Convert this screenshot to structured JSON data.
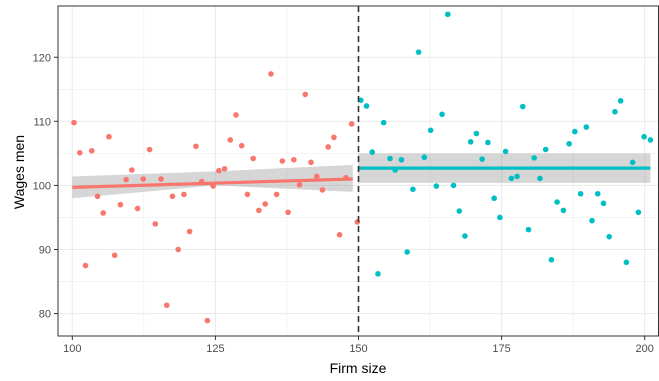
{
  "chart_data": {
    "type": "scatter",
    "title": "",
    "xlabel": "Firm size",
    "ylabel": "Wages men",
    "xlim": [
      97.5,
      202.5
    ],
    "ylim": [
      76.5,
      128
    ],
    "xticks": [
      100,
      125,
      150,
      175,
      200
    ],
    "yticks": [
      80,
      90,
      100,
      110,
      120
    ],
    "grid": true,
    "legend": "none",
    "cutoff": 150,
    "background": "#ffffff",
    "grid_color": "#ebebeb",
    "border_color": "#333333",
    "series": [
      {
        "color": "#F8766D",
        "points": [
          [
            100.3,
            109.8
          ],
          [
            101.3,
            105.1
          ],
          [
            102.3,
            87.5
          ],
          [
            103.4,
            105.4
          ],
          [
            104.4,
            98.3
          ],
          [
            105.4,
            95.7
          ],
          [
            106.4,
            107.6
          ],
          [
            107.4,
            89.1
          ],
          [
            108.4,
            97.0
          ],
          [
            109.4,
            100.9
          ],
          [
            110.4,
            102.4
          ],
          [
            111.4,
            96.4
          ],
          [
            112.4,
            101.0
          ],
          [
            113.5,
            105.6
          ],
          [
            114.5,
            94.0
          ],
          [
            115.5,
            101.0
          ],
          [
            116.5,
            81.3
          ],
          [
            117.5,
            98.3
          ],
          [
            118.5,
            90.0
          ],
          [
            119.5,
            98.6
          ],
          [
            120.5,
            92.8
          ],
          [
            121.6,
            106.1
          ],
          [
            122.6,
            100.6
          ],
          [
            123.6,
            78.9
          ],
          [
            124.6,
            99.9
          ],
          [
            125.6,
            102.3
          ],
          [
            126.6,
            102.6
          ],
          [
            127.6,
            107.1
          ],
          [
            128.6,
            111.0
          ],
          [
            129.6,
            106.2
          ],
          [
            130.6,
            98.6
          ],
          [
            131.6,
            104.2
          ],
          [
            132.6,
            96.1
          ],
          [
            133.7,
            97.1
          ],
          [
            134.7,
            117.4
          ],
          [
            135.7,
            98.6
          ],
          [
            136.7,
            103.8
          ],
          [
            137.7,
            95.8
          ],
          [
            138.7,
            104.0
          ],
          [
            139.7,
            100.1
          ],
          [
            140.7,
            114.2
          ],
          [
            141.7,
            103.6
          ],
          [
            142.7,
            101.4
          ],
          [
            143.7,
            99.3
          ],
          [
            144.7,
            106.0
          ],
          [
            145.7,
            107.5
          ],
          [
            146.7,
            92.3
          ],
          [
            147.8,
            101.2
          ],
          [
            148.8,
            109.6
          ],
          [
            149.8,
            94.3
          ]
        ],
        "fit": {
          "x": [
            100,
            149
          ],
          "y": [
            99.7,
            101.0
          ]
        },
        "band": {
          "x": [
            100,
            125,
            149
          ],
          "lower": [
            98.0,
            100.0,
            99.0
          ],
          "upper": [
            101.4,
            102.2,
            103.2
          ]
        }
      },
      {
        "color": "#00BFC4",
        "points": [
          [
            150.4,
            113.3
          ],
          [
            151.4,
            112.4
          ],
          [
            152.4,
            105.2
          ],
          [
            153.4,
            86.2
          ],
          [
            154.4,
            109.8
          ],
          [
            155.5,
            104.2
          ],
          [
            156.4,
            102.4
          ],
          [
            157.5,
            104.0
          ],
          [
            158.5,
            89.6
          ],
          [
            159.5,
            99.4
          ],
          [
            160.5,
            120.8
          ],
          [
            161.5,
            104.4
          ],
          [
            162.6,
            108.6
          ],
          [
            163.6,
            99.9
          ],
          [
            164.6,
            111.1
          ],
          [
            165.6,
            126.7
          ],
          [
            166.6,
            100.0
          ],
          [
            167.6,
            96.0
          ],
          [
            168.6,
            92.1
          ],
          [
            169.6,
            106.8
          ],
          [
            170.6,
            108.1
          ],
          [
            171.6,
            104.1
          ],
          [
            172.6,
            106.7
          ],
          [
            173.7,
            98.0
          ],
          [
            174.7,
            95.0
          ],
          [
            175.7,
            105.3
          ],
          [
            176.7,
            101.1
          ],
          [
            177.7,
            101.4
          ],
          [
            178.7,
            112.3
          ],
          [
            179.7,
            93.1
          ],
          [
            180.7,
            104.3
          ],
          [
            181.7,
            101.1
          ],
          [
            182.7,
            105.6
          ],
          [
            183.7,
            88.4
          ],
          [
            184.7,
            97.4
          ],
          [
            185.8,
            96.1
          ],
          [
            186.8,
            106.5
          ],
          [
            187.8,
            108.4
          ],
          [
            188.8,
            98.7
          ],
          [
            189.8,
            109.1
          ],
          [
            190.8,
            94.5
          ],
          [
            191.8,
            98.7
          ],
          [
            192.8,
            97.2
          ],
          [
            193.8,
            92.0
          ],
          [
            194.8,
            111.5
          ],
          [
            195.8,
            113.2
          ],
          [
            196.8,
            88.0
          ],
          [
            197.9,
            103.6
          ],
          [
            198.9,
            95.8
          ],
          [
            199.9,
            107.6
          ],
          [
            201.0,
            107.1
          ]
        ],
        "fit": {
          "x": [
            150,
            201
          ],
          "y": [
            102.7,
            102.7
          ]
        },
        "band": {
          "x": [
            150,
            175,
            201
          ],
          "lower": [
            100.4,
            100.4,
            100.4
          ],
          "upper": [
            105.0,
            105.0,
            105.0
          ]
        }
      }
    ]
  }
}
